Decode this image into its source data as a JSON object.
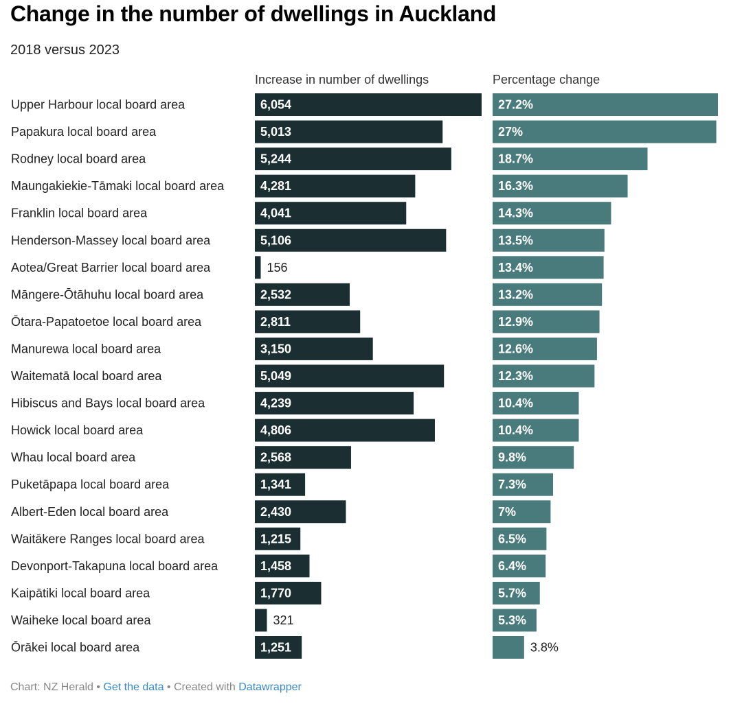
{
  "title": "Change in the number of dwellings in Auckland",
  "subtitle": "2018 versus 2023",
  "footer": {
    "source": "Chart: NZ Herald",
    "sep1": " • ",
    "data_link": "Get the data",
    "sep2": " • Created with ",
    "tool_link": "Datawrapper"
  },
  "colors": {
    "count_bar": "#1b2f33",
    "pct_bar": "#4a7b7c",
    "label_inside": "#ffffff",
    "label_outside": "#222222",
    "link": "#3a88c8"
  },
  "chart_data": {
    "type": "bar",
    "orientation": "horizontal",
    "categories": [
      "Upper Harbour local board area",
      "Papakura local board area",
      "Rodney local board area",
      "Maungakiekie-Tāmaki local board area",
      "Franklin local board area",
      "Henderson-Massey local board area",
      "Aotea/Great Barrier local board area",
      "Māngere-Ōtāhuhu local board area",
      "Ōtara-Papatoetoe local board area",
      "Manurewa local board area",
      "Waitematā local board area",
      "Hibiscus and Bays local board area",
      "Howick local board area",
      "Whau local board area",
      "Puketāpapa local board area",
      "Albert-Eden local board area",
      "Waitākere Ranges local board area",
      "Devonport-Takapuna local board area",
      "Kaipātiki local board area",
      "Waiheke local board area",
      "Ōrākei local board area"
    ],
    "series": [
      {
        "name": "Increase in number of dwellings",
        "values": [
          6054,
          5013,
          5244,
          4281,
          4041,
          5106,
          156,
          2532,
          2811,
          3150,
          5049,
          4239,
          4806,
          2568,
          1341,
          2430,
          1215,
          1458,
          1770,
          321,
          1251
        ],
        "labels": [
          "6,054",
          "5,013",
          "5,244",
          "4,281",
          "4,041",
          "5,106",
          "156",
          "2,532",
          "2,811",
          "3,150",
          "5,049",
          "4,239",
          "4,806",
          "2,568",
          "1,341",
          "2,430",
          "1,215",
          "1,458",
          "1,770",
          "321",
          "1,251"
        ],
        "xlim": [
          0,
          6054
        ]
      },
      {
        "name": "Percentage change",
        "values": [
          27.2,
          27.0,
          18.7,
          16.3,
          14.3,
          13.5,
          13.4,
          13.2,
          12.9,
          12.6,
          12.3,
          10.4,
          10.4,
          9.8,
          7.3,
          7.0,
          6.5,
          6.4,
          5.7,
          5.3,
          3.8
        ],
        "labels": [
          "27.2%",
          "27%",
          "18.7%",
          "16.3%",
          "14.3%",
          "13.5%",
          "13.4%",
          "13.2%",
          "12.9%",
          "12.6%",
          "12.3%",
          "10.4%",
          "10.4%",
          "9.8%",
          "7.3%",
          "7%",
          "6.5%",
          "6.4%",
          "5.7%",
          "5.3%",
          "3.8%"
        ],
        "xlim": [
          0,
          27.2
        ]
      }
    ],
    "grid": false,
    "legend": "none"
  }
}
